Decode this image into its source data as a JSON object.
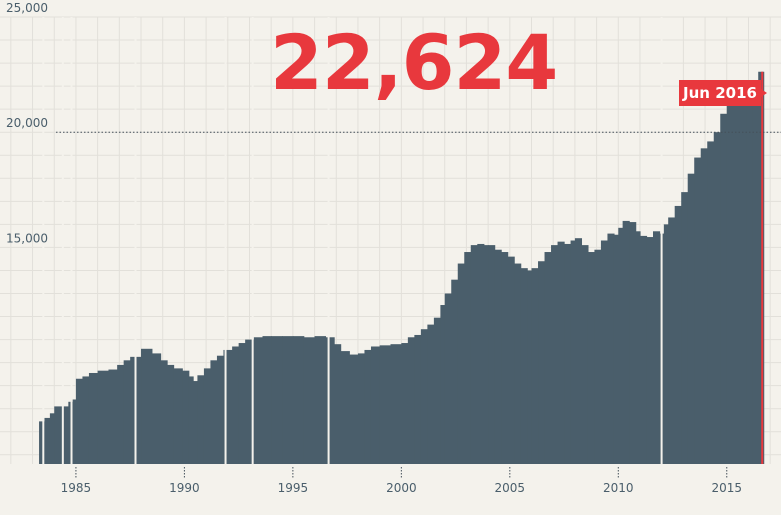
{
  "headline": {
    "value": "22,624"
  },
  "callout": {
    "label": "Jun 2016"
  },
  "colors": {
    "bar": "#4a5e6b",
    "accent": "#e8383d",
    "grid": "#e2e0da",
    "text": "#4a5e6b"
  },
  "chart_data": {
    "type": "bar",
    "title": "",
    "xlabel": "",
    "ylabel": "",
    "ylim": [
      5600,
      25000
    ],
    "xlim": [
      1981.5,
      2017.5
    ],
    "y_ticks": [
      {
        "value": 25000,
        "label": "25,000"
      },
      {
        "value": 20000,
        "label": "20,000"
      },
      {
        "value": 15000,
        "label": "15,000"
      }
    ],
    "x_ticks": [
      {
        "value": 1985,
        "label": "1985"
      },
      {
        "value": 1990,
        "label": "1990"
      },
      {
        "value": 1995,
        "label": "1995"
      },
      {
        "value": 2000,
        "label": "2000"
      },
      {
        "value": 2005,
        "label": "2005"
      },
      {
        "value": 2010,
        "label": "2010"
      },
      {
        "value": 2015,
        "label": "2015"
      }
    ],
    "reference_line": {
      "value": 20000,
      "style": "dotted"
    },
    "grid": true,
    "series": [
      {
        "points": [
          [
            1983.3,
            7450
          ],
          [
            1983.55,
            7600
          ],
          [
            1983.8,
            7800
          ],
          [
            1984.0,
            8100
          ],
          [
            1984.65,
            8300
          ],
          [
            1984.85,
            8400
          ],
          [
            1985.0,
            9300
          ],
          [
            1985.3,
            9400
          ],
          [
            1985.6,
            9550
          ],
          [
            1986.0,
            9650
          ],
          [
            1986.5,
            9700
          ],
          [
            1986.9,
            9900
          ],
          [
            1987.2,
            10100
          ],
          [
            1987.5,
            10250
          ],
          [
            1988.0,
            10600
          ],
          [
            1988.5,
            10400
          ],
          [
            1988.9,
            10100
          ],
          [
            1989.2,
            9900
          ],
          [
            1989.5,
            9750
          ],
          [
            1989.9,
            9650
          ],
          [
            1990.2,
            9400
          ],
          [
            1990.4,
            9200
          ],
          [
            1990.6,
            9450
          ],
          [
            1990.9,
            9750
          ],
          [
            1991.2,
            10100
          ],
          [
            1991.5,
            10300
          ],
          [
            1991.8,
            10550
          ],
          [
            1992.2,
            10700
          ],
          [
            1992.5,
            10850
          ],
          [
            1992.8,
            11000
          ],
          [
            1993.2,
            11100
          ],
          [
            1993.6,
            11150
          ],
          [
            1994.0,
            11150
          ],
          [
            1994.5,
            11150
          ],
          [
            1995.0,
            11150
          ],
          [
            1995.5,
            11100
          ],
          [
            1996.0,
            11150
          ],
          [
            1996.5,
            11100
          ],
          [
            1996.9,
            10800
          ],
          [
            1997.2,
            10500
          ],
          [
            1997.6,
            10350
          ],
          [
            1998.0,
            10400
          ],
          [
            1998.3,
            10550
          ],
          [
            1998.6,
            10700
          ],
          [
            1999.0,
            10750
          ],
          [
            1999.5,
            10800
          ],
          [
            2000.0,
            10850
          ],
          [
            2000.3,
            11100
          ],
          [
            2000.6,
            11200
          ],
          [
            2000.9,
            11450
          ],
          [
            2001.2,
            11650
          ],
          [
            2001.5,
            11950
          ],
          [
            2001.8,
            12500
          ],
          [
            2002.0,
            13000
          ],
          [
            2002.3,
            13600
          ],
          [
            2002.6,
            14300
          ],
          [
            2002.9,
            14800
          ],
          [
            2003.2,
            15100
          ],
          [
            2003.5,
            15150
          ],
          [
            2003.8,
            15100
          ],
          [
            2004.0,
            15100
          ],
          [
            2004.3,
            14900
          ],
          [
            2004.6,
            14800
          ],
          [
            2004.9,
            14600
          ],
          [
            2005.2,
            14300
          ],
          [
            2005.5,
            14100
          ],
          [
            2005.8,
            14000
          ],
          [
            2006.0,
            14100
          ],
          [
            2006.3,
            14400
          ],
          [
            2006.6,
            14800
          ],
          [
            2006.9,
            15100
          ],
          [
            2007.2,
            15250
          ],
          [
            2007.5,
            15150
          ],
          [
            2007.8,
            15300
          ],
          [
            2008.0,
            15400
          ],
          [
            2008.3,
            15100
          ],
          [
            2008.6,
            14800
          ],
          [
            2008.9,
            14900
          ],
          [
            2009.2,
            15300
          ],
          [
            2009.5,
            15600
          ],
          [
            2009.8,
            15550
          ],
          [
            2010.0,
            15850
          ],
          [
            2010.2,
            16150
          ],
          [
            2010.5,
            16100
          ],
          [
            2010.8,
            15700
          ],
          [
            2011.0,
            15500
          ],
          [
            2011.3,
            15450
          ],
          [
            2011.6,
            15700
          ],
          [
            2011.9,
            15600
          ],
          [
            2012.1,
            16000
          ],
          [
            2012.3,
            16300
          ],
          [
            2012.6,
            16800
          ],
          [
            2012.9,
            17400
          ],
          [
            2013.2,
            18200
          ],
          [
            2013.5,
            18900
          ],
          [
            2013.8,
            19300
          ],
          [
            2014.1,
            19600
          ],
          [
            2014.4,
            20000
          ],
          [
            2014.7,
            20800
          ],
          [
            2015.0,
            21300
          ],
          [
            2015.3,
            21600
          ],
          [
            2015.6,
            21700
          ],
          [
            2015.9,
            21800
          ],
          [
            2016.2,
            22000
          ],
          [
            2016.45,
            22624
          ]
        ]
      }
    ]
  }
}
